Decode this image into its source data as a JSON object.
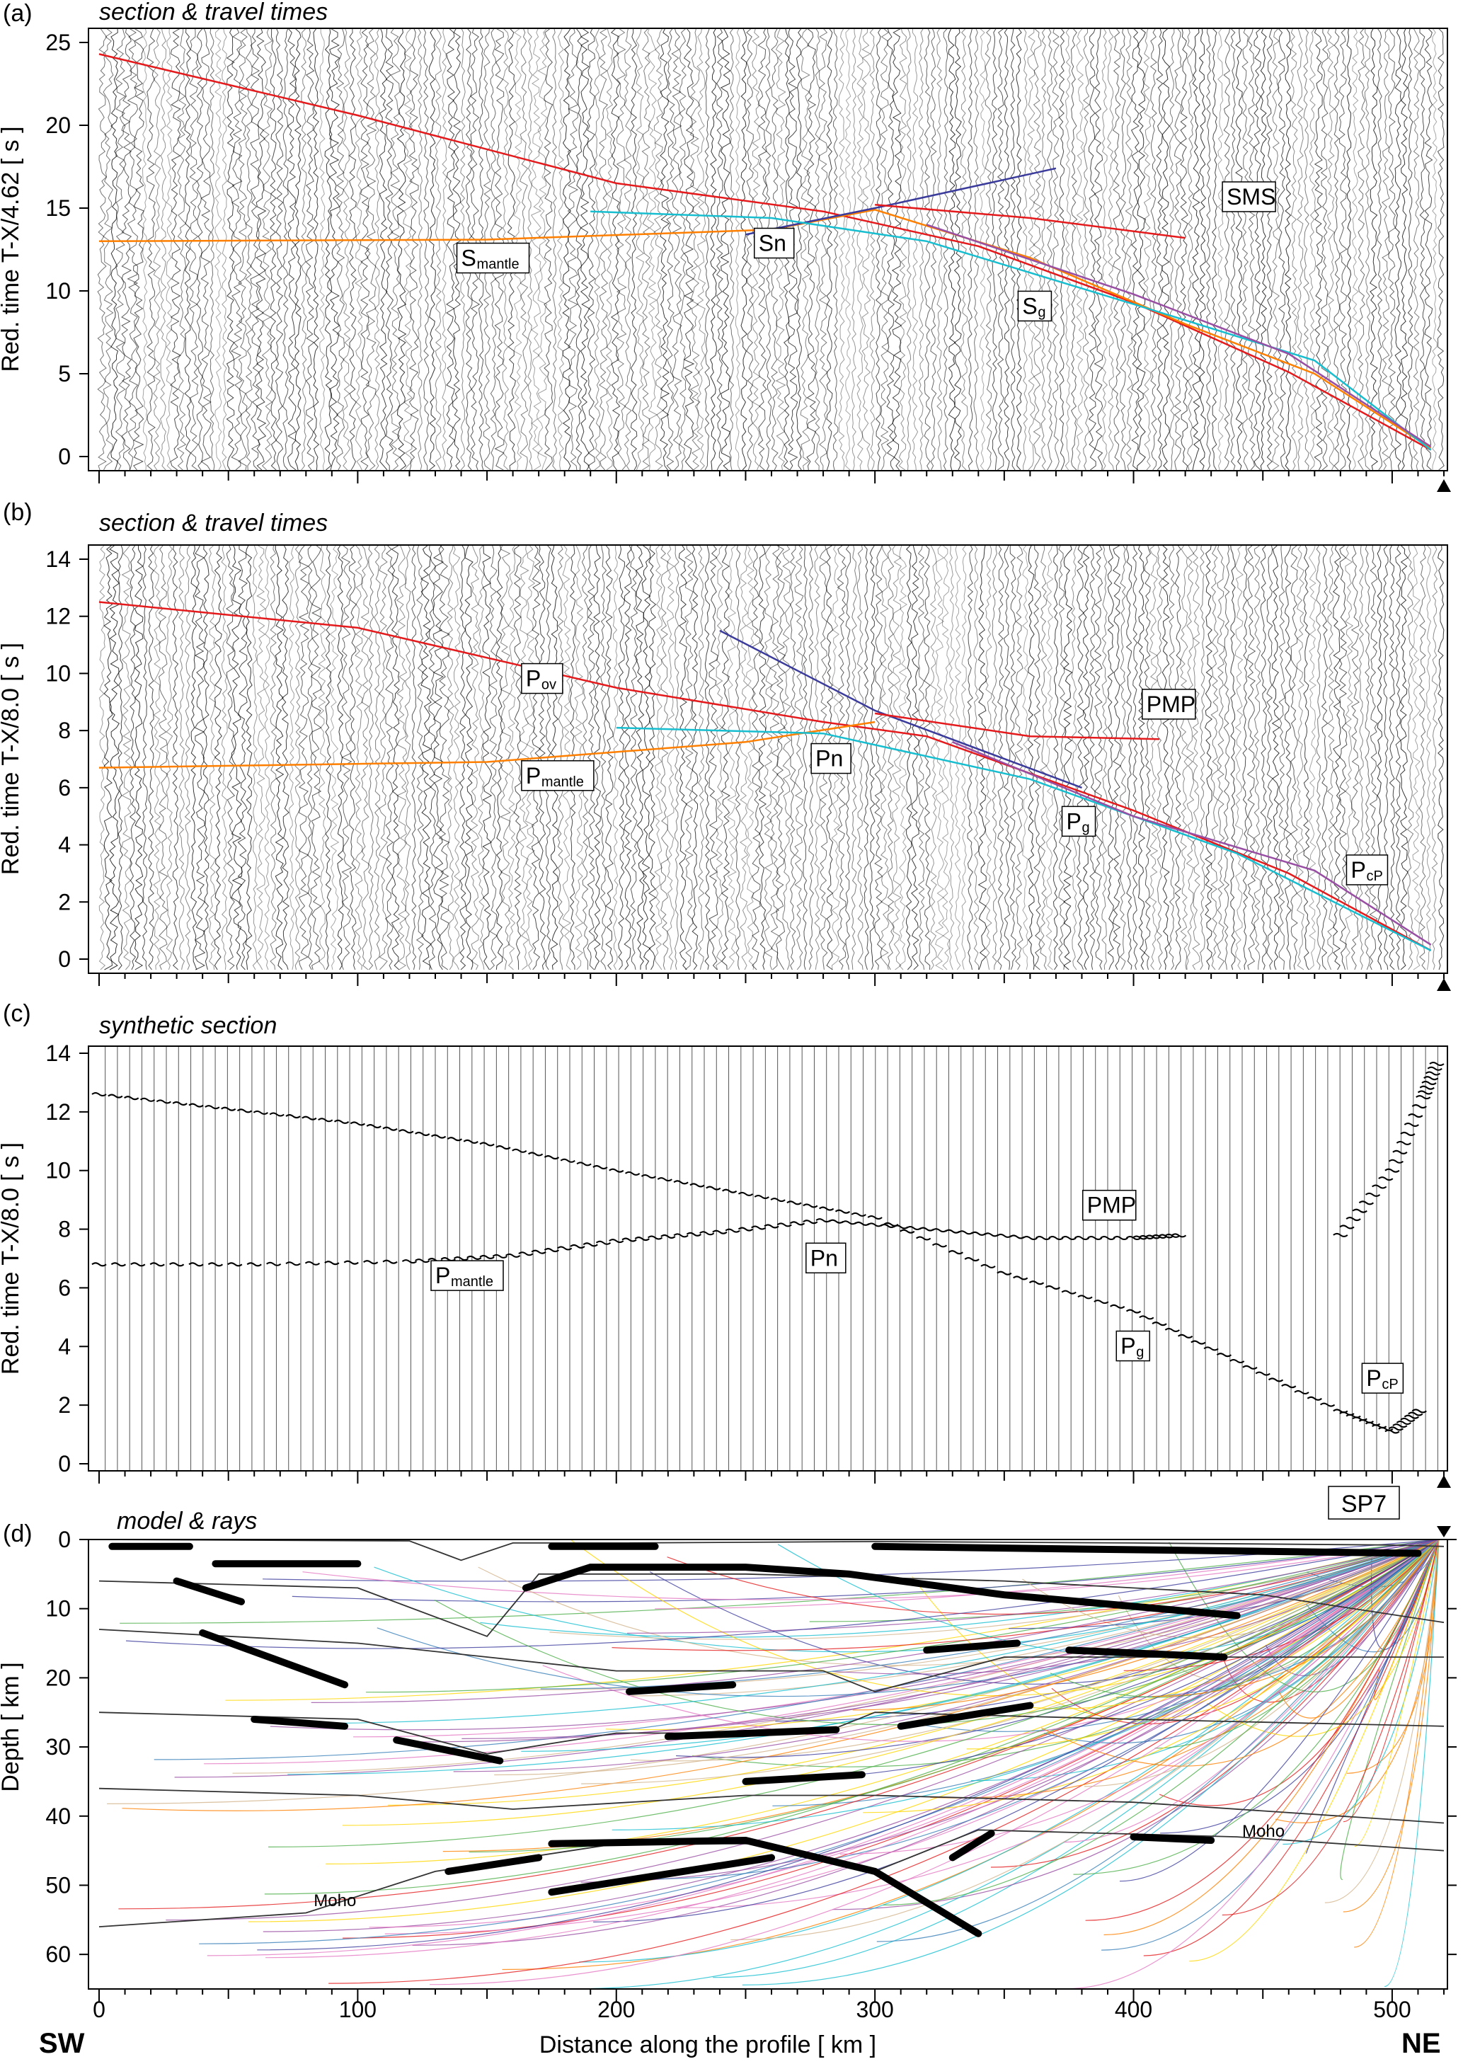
{
  "figure": {
    "xlabel": "Distance along the profile  [ km ]",
    "x_ticks": [
      "0",
      "100",
      "200",
      "300",
      "400",
      "500"
    ],
    "left_corner": "SW",
    "right_corner": "NE",
    "shotpoint": "SP7",
    "colors": {
      "trace": "#000000",
      "rays": [
        "#e41a1c",
        "#ff7f00",
        "#ffd700",
        "#4daf4a",
        "#17becf",
        "#377eb8",
        "#3b3b9c",
        "#984ea3",
        "#e377c2",
        "#d2b48c"
      ]
    }
  },
  "chart_data": [
    {
      "id": "a",
      "letter": "(a)",
      "title": "section & travel times",
      "type": "line",
      "ylabel": "Red. time  T-X/4.62  [ s ]",
      "ylim": [
        0,
        25
      ],
      "xlim": [
        0,
        520
      ],
      "y_ticks": [
        "0",
        "5",
        "10",
        "15",
        "20",
        "25"
      ],
      "phases": [
        {
          "label": "S",
          "sub": "mantle",
          "x": 140,
          "t": 11.6
        },
        {
          "label": "Sn",
          "x": 255,
          "t": 12.5
        },
        {
          "label": "S",
          "sub": "g",
          "x": 357,
          "t": 8.7
        },
        {
          "label": "SMS",
          "x": 436,
          "t": 15.3
        }
      ],
      "series": [
        {
          "x": [
            0,
            100,
            200,
            280,
            340,
            400,
            460,
            515
          ],
          "y": [
            24.3,
            20.6,
            16.5,
            14.8,
            12.7,
            9.3,
            5.1,
            0.4
          ],
          "color": "#e41a1c"
        },
        {
          "x": [
            0,
            150,
            260,
            300,
            360,
            420,
            470,
            515
          ],
          "y": [
            13.0,
            13.1,
            13.7,
            14.9,
            12.0,
            8.0,
            5.0,
            0.5
          ],
          "color": "#ff7f00"
        },
        {
          "x": [
            250,
            300,
            370
          ],
          "y": [
            13.4,
            15.0,
            17.4
          ],
          "color": "#3b3b9c"
        },
        {
          "x": [
            300,
            360,
            420
          ],
          "y": [
            15.2,
            14.4,
            13.2
          ],
          "color": "#e41a1c"
        },
        {
          "x": [
            190,
            260,
            320,
            400,
            470,
            515
          ],
          "y": [
            14.8,
            14.4,
            13.0,
            9.2,
            5.8,
            0.4
          ],
          "color": "#17becf"
        },
        {
          "x": [
            320,
            400,
            460,
            515
          ],
          "y": [
            14.0,
            9.8,
            6.2,
            0.6
          ],
          "color": "#984ea3"
        }
      ]
    },
    {
      "id": "b",
      "letter": "(b)",
      "title": "section & travel times",
      "type": "line",
      "ylabel": "Red. time  T-X/8.0  [ s ]",
      "ylim": [
        0,
        14
      ],
      "xlim": [
        0,
        520
      ],
      "y_ticks": [
        "0",
        "2",
        "4",
        "6",
        "8",
        "10",
        "12",
        "14"
      ],
      "phases": [
        {
          "label": "P",
          "sub": "ov",
          "x": 165,
          "t": 9.6
        },
        {
          "label": "P",
          "sub": "mantle",
          "x": 165,
          "t": 6.2
        },
        {
          "label": "Pn",
          "x": 277,
          "t": 6.8
        },
        {
          "label": "P",
          "sub": "g",
          "x": 374,
          "t": 4.6
        },
        {
          "label": "PMP",
          "x": 405,
          "t": 8.7
        },
        {
          "label": "P",
          "sub": "cP",
          "x": 484,
          "t": 2.9
        }
      ],
      "series": [
        {
          "x": [
            0,
            100,
            200,
            280,
            320,
            400,
            460,
            515
          ],
          "y": [
            12.5,
            11.6,
            9.5,
            8.3,
            7.8,
            5.2,
            3.0,
            0.3
          ],
          "color": "#e41a1c"
        },
        {
          "x": [
            0,
            150,
            250,
            300
          ],
          "y": [
            6.7,
            6.9,
            7.6,
            8.3
          ],
          "color": "#ff7f00"
        },
        {
          "x": [
            240,
            300,
            380
          ],
          "y": [
            11.5,
            8.7,
            6.0
          ],
          "color": "#3b3b9c"
        },
        {
          "x": [
            300,
            360,
            410
          ],
          "y": [
            8.6,
            7.8,
            7.7
          ],
          "color": "#e41a1c"
        },
        {
          "x": [
            200,
            280,
            360,
            440,
            515
          ],
          "y": [
            8.1,
            7.9,
            6.3,
            3.7,
            0.3
          ],
          "color": "#17becf"
        },
        {
          "x": [
            330,
            400,
            470,
            515
          ],
          "y": [
            7.6,
            5.0,
            3.1,
            0.5
          ],
          "color": "#984ea3"
        }
      ]
    },
    {
      "id": "c",
      "letter": "(c)",
      "title": "synthetic section",
      "type": "scatter",
      "ylabel": "Red. time  T-X/8.0  [ s ]",
      "ylim": [
        0,
        14
      ],
      "xlim": [
        0,
        520
      ],
      "y_ticks": [
        "0",
        "2",
        "4",
        "6",
        "8",
        "10",
        "12",
        "14"
      ],
      "phases": [
        {
          "label": "P",
          "sub": "mantle",
          "x": 130,
          "t": 6.2
        },
        {
          "label": "Pn",
          "x": 275,
          "t": 6.8
        },
        {
          "label": "PMP",
          "x": 382,
          "t": 8.6
        },
        {
          "label": "P",
          "sub": "g",
          "x": 395,
          "t": 3.8
        },
        {
          "label": "P",
          "sub": "cP",
          "x": 490,
          "t": 2.7
        }
      ],
      "series": [
        {
          "x": [
            0,
            50,
            100,
            150,
            200,
            250,
            300,
            350,
            400,
            440,
            480,
            500,
            512
          ],
          "y": [
            12.6,
            12.1,
            11.6,
            10.9,
            10.0,
            9.2,
            8.4,
            6.5,
            5.2,
            3.5,
            1.8,
            1.1,
            1.9
          ],
          "color": "#000000"
        },
        {
          "x": [
            0,
            60,
            120,
            160,
            200,
            240,
            280,
            320,
            360,
            400,
            420
          ],
          "y": [
            6.8,
            6.8,
            6.9,
            7.1,
            7.6,
            7.9,
            8.3,
            8.0,
            7.7,
            7.7,
            7.8
          ],
          "color": "#000000"
        },
        {
          "x": [
            480,
            500,
            512,
            518
          ],
          "y": [
            7.8,
            10.0,
            12.5,
            13.8
          ],
          "color": "#000000"
        }
      ]
    },
    {
      "id": "d",
      "letter": "(d)",
      "title": "model & rays",
      "type": "line",
      "ylabel": "Depth  [ km ]",
      "ylim": [
        65,
        0
      ],
      "xlim": [
        0,
        520
      ],
      "y_ticks": [
        "0",
        "10",
        "20",
        "30",
        "40",
        "50",
        "60"
      ],
      "moho_labels": [
        {
          "label": "Moho",
          "x": 83,
          "depth": 53
        },
        {
          "label": "Moho",
          "x": 442,
          "depth": 43
        }
      ],
      "interfaces": [
        {
          "x": [
            0,
            120,
            140,
            160,
            200,
            300,
            400,
            500,
            520
          ],
          "y": [
            0,
            0.2,
            3.0,
            0.5,
            0.5,
            0.3,
            0.5,
            0.8,
            1.0
          ]
        },
        {
          "x": [
            0,
            100,
            150,
            170,
            250,
            300,
            350,
            450,
            520
          ],
          "y": [
            6,
            7,
            14,
            5,
            5,
            5.5,
            6,
            8,
            12
          ]
        },
        {
          "x": [
            0,
            100,
            200,
            280,
            300,
            350,
            450,
            520
          ],
          "y": [
            13,
            15,
            19,
            19,
            22,
            17,
            17,
            17
          ]
        },
        {
          "x": [
            0,
            100,
            150,
            200,
            280,
            300,
            400,
            520
          ],
          "y": [
            25,
            26,
            31,
            28,
            28,
            25,
            26,
            27
          ]
        },
        {
          "x": [
            0,
            100,
            160,
            250,
            300,
            400,
            520
          ],
          "y": [
            36,
            37,
            39,
            37,
            37,
            38,
            41
          ]
        },
        {
          "x": [
            0,
            80,
            130,
            200,
            260,
            300,
            340,
            440,
            520
          ],
          "y": [
            56,
            54,
            48,
            44,
            44,
            48,
            42,
            43,
            45
          ]
        }
      ],
      "reflectors": [
        {
          "x": [
            5,
            35
          ],
          "y": [
            1,
            1
          ]
        },
        {
          "x": [
            45,
            100
          ],
          "y": [
            3.5,
            3.5
          ]
        },
        {
          "x": [
            175,
            215
          ],
          "y": [
            1,
            1
          ]
        },
        {
          "x": [
            300,
            510
          ],
          "y": [
            1,
            2
          ]
        },
        {
          "x": [
            30,
            55
          ],
          "y": [
            6,
            9
          ]
        },
        {
          "x": [
            165,
            190,
            250,
            290,
            350,
            440
          ],
          "y": [
            7,
            4,
            4,
            5,
            8,
            11
          ]
        },
        {
          "x": [
            40,
            95
          ],
          "y": [
            13.5,
            21
          ]
        },
        {
          "x": [
            60,
            95
          ],
          "y": [
            26,
            27
          ]
        },
        {
          "x": [
            115,
            155
          ],
          "y": [
            29,
            32
          ]
        },
        {
          "x": [
            205,
            245
          ],
          "y": [
            22,
            21
          ]
        },
        {
          "x": [
            220,
            285
          ],
          "y": [
            28.5,
            27.5
          ]
        },
        {
          "x": [
            310,
            360
          ],
          "y": [
            27,
            24
          ]
        },
        {
          "x": [
            250,
            295
          ],
          "y": [
            35,
            34
          ]
        },
        {
          "x": [
            320,
            355
          ],
          "y": [
            16,
            15
          ]
        },
        {
          "x": [
            375,
            435
          ],
          "y": [
            16,
            17
          ]
        },
        {
          "x": [
            135,
            170
          ],
          "y": [
            48,
            46
          ]
        },
        {
          "x": [
            175,
            250,
            300,
            340
          ],
          "y": [
            44,
            43.5,
            48,
            57
          ]
        },
        {
          "x": [
            175,
            260
          ],
          "y": [
            51,
            46
          ]
        },
        {
          "x": [
            330,
            345
          ],
          "y": [
            46,
            42.5
          ]
        },
        {
          "x": [
            400,
            430
          ],
          "y": [
            43,
            43.5
          ]
        }
      ]
    }
  ]
}
